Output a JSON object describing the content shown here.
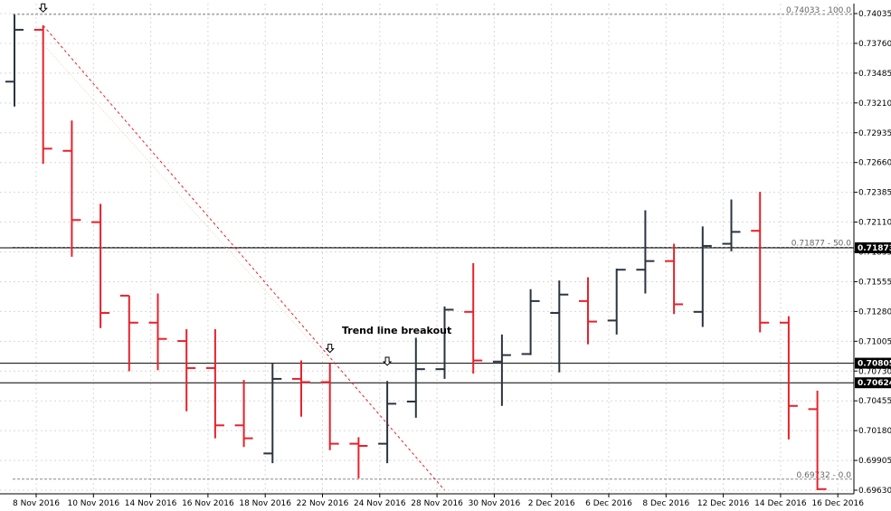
{
  "colors": {
    "background": "#ffffff",
    "bull": "#2b3440",
    "bear": "#e8212b",
    "trendline": "#e8212b",
    "axis": "#000000",
    "grid": "#d8d8d8",
    "hline": "#000000",
    "label_bg": "#000000"
  },
  "chart_data": {
    "type": "ohlc",
    "x_tick_labels": [
      "8 Nov 2016",
      "10 Nov 2016",
      "14 Nov 2016",
      "16 Nov 2016",
      "18 Nov 2016",
      "22 Nov 2016",
      "24 Nov 2016",
      "28 Nov 2016",
      "30 Nov 2016",
      "2 Dec 2016",
      "6 Dec 2016",
      "8 Dec 2016",
      "12 Dec 2016",
      "14 Dec 2016",
      "16 Dec 2016"
    ],
    "y_tick_labels": [
      "0.74035",
      "0.73760",
      "0.73485",
      "0.73210",
      "0.72935",
      "0.72660",
      "0.72385",
      "0.72110",
      "0.71835",
      "0.71555",
      "0.71280",
      "0.71005",
      "0.70730",
      "0.70455",
      "0.70180",
      "0.69905",
      "0.69630"
    ],
    "ylim": [
      0.6963,
      0.7404
    ],
    "grid": true,
    "bars": [
      {
        "o": 0.7341,
        "h": 0.7403,
        "l": 0.7318,
        "c": 0.7389
      },
      {
        "o": 0.7389,
        "h": 0.7393,
        "l": 0.7265,
        "c": 0.7279
      },
      {
        "o": 0.7277,
        "h": 0.7305,
        "l": 0.7179,
        "c": 0.7213
      },
      {
        "o": 0.7211,
        "h": 0.7228,
        "l": 0.7113,
        "c": 0.7127
      },
      {
        "o": 0.7143,
        "h": 0.7143,
        "l": 0.7073,
        "c": 0.7118
      },
      {
        "o": 0.7118,
        "h": 0.7145,
        "l": 0.7074,
        "c": 0.7103
      },
      {
        "o": 0.7101,
        "h": 0.7112,
        "l": 0.7036,
        "c": 0.7076
      },
      {
        "o": 0.7076,
        "h": 0.7112,
        "l": 0.7011,
        "c": 0.7023
      },
      {
        "o": 0.7023,
        "h": 0.7065,
        "l": 0.7003,
        "c": 0.7011
      },
      {
        "o": 0.6997,
        "h": 0.708,
        "l": 0.6988,
        "c": 0.7066
      },
      {
        "o": 0.7066,
        "h": 0.7083,
        "l": 0.7031,
        "c": 0.7063
      },
      {
        "o": 0.7063,
        "h": 0.708,
        "l": 0.7,
        "c": 0.7006
      },
      {
        "o": 0.7006,
        "h": 0.7012,
        "l": 0.6974,
        "c": 0.7004
      },
      {
        "o": 0.7006,
        "h": 0.7064,
        "l": 0.6988,
        "c": 0.7043
      },
      {
        "o": 0.7045,
        "h": 0.7104,
        "l": 0.703,
        "c": 0.7075
      },
      {
        "o": 0.7075,
        "h": 0.7133,
        "l": 0.7066,
        "c": 0.713
      },
      {
        "o": 0.7128,
        "h": 0.7173,
        "l": 0.7071,
        "c": 0.7083
      },
      {
        "o": 0.7082,
        "h": 0.7107,
        "l": 0.7041,
        "c": 0.7088
      },
      {
        "o": 0.7089,
        "h": 0.7149,
        "l": 0.7088,
        "c": 0.7138
      },
      {
        "o": 0.7127,
        "h": 0.7157,
        "l": 0.7072,
        "c": 0.7144
      },
      {
        "o": 0.7138,
        "h": 0.716,
        "l": 0.7098,
        "c": 0.7119
      },
      {
        "o": 0.712,
        "h": 0.7168,
        "l": 0.7107,
        "c": 0.7167
      },
      {
        "o": 0.7167,
        "h": 0.7222,
        "l": 0.7145,
        "c": 0.7175
      },
      {
        "o": 0.7175,
        "h": 0.7191,
        "l": 0.7126,
        "c": 0.7135
      },
      {
        "o": 0.7128,
        "h": 0.7207,
        "l": 0.7114,
        "c": 0.7189
      },
      {
        "o": 0.7191,
        "h": 0.7232,
        "l": 0.7184,
        "c": 0.7202
      },
      {
        "o": 0.7203,
        "h": 0.7239,
        "l": 0.7109,
        "c": 0.7118
      },
      {
        "o": 0.7118,
        "h": 0.7124,
        "l": 0.701,
        "c": 0.7041
      },
      {
        "o": 0.7038,
        "h": 0.7055,
        "l": 0.6963,
        "c": 0.6964
      }
    ],
    "horizontal_lines": [
      {
        "value": 0.71873,
        "label": "0.71873"
      },
      {
        "value": 0.70805,
        "label": "0.70805"
      },
      {
        "value": 0.70624,
        "label": "0.70624"
      }
    ],
    "fibonacci": [
      {
        "value": 0.74033,
        "label": "0.74033 - 100.0"
      },
      {
        "value": 0.71877,
        "label": "0.71877 - 50.0"
      },
      {
        "value": 0.69732,
        "label": "0.69732 - 0.0"
      }
    ],
    "annotations": [
      {
        "text": "Trend line breakout"
      }
    ],
    "trendline": {
      "from": {
        "bar": 1,
        "value": 0.7393
      },
      "to": {
        "bar": 15,
        "value": 0.6963
      }
    },
    "arrow_markers": [
      {
        "bar": 1,
        "value": 0.7403
      },
      {
        "bar": 11,
        "value": 0.7088
      },
      {
        "bar": 13,
        "value": 0.7076
      }
    ]
  }
}
